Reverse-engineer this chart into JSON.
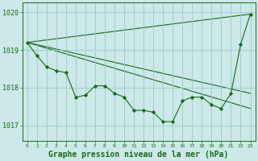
{
  "background_color": "#cce8e8",
  "grid_color": "#99cccc",
  "line_color": "#1a6b1a",
  "marker_color": "#1a6b1a",
  "xlabel": "Graphe pression niveau de la mer (hPa)",
  "xlabel_fontsize": 7.0,
  "xlim": [
    -0.5,
    23.5
  ],
  "ylim": [
    1016.6,
    1020.25
  ],
  "yticks": [
    1017,
    1018,
    1019,
    1020
  ],
  "ytick_labels": [
    "1017",
    "1018",
    "1019",
    "1020"
  ],
  "xticks": [
    0,
    1,
    2,
    3,
    4,
    5,
    6,
    7,
    8,
    9,
    10,
    11,
    12,
    13,
    14,
    15,
    16,
    17,
    18,
    19,
    20,
    21,
    22,
    23
  ],
  "detail_series": {
    "x": [
      0,
      1,
      2,
      3,
      4,
      5,
      6,
      7,
      8,
      9,
      10,
      11,
      12,
      13,
      14,
      15,
      16,
      17,
      18,
      19,
      20,
      21,
      22,
      23
    ],
    "y": [
      1019.2,
      1018.85,
      1018.55,
      1018.45,
      1018.4,
      1017.75,
      1017.8,
      1018.05,
      1018.05,
      1017.85,
      1017.75,
      1017.4,
      1017.4,
      1017.35,
      1017.1,
      1017.1,
      1017.65,
      1017.75,
      1017.75,
      1017.55,
      1017.45,
      1017.85,
      1019.15,
      1019.95
    ]
  },
  "straight_lines": [
    {
      "x": [
        0,
        23
      ],
      "y": [
        1019.2,
        1019.95
      ]
    },
    {
      "x": [
        0,
        23
      ],
      "y": [
        1019.2,
        1017.85
      ]
    },
    {
      "x": [
        0,
        23
      ],
      "y": [
        1019.2,
        1017.45
      ]
    }
  ],
  "figsize": [
    3.2,
    2.0
  ],
  "dpi": 100
}
